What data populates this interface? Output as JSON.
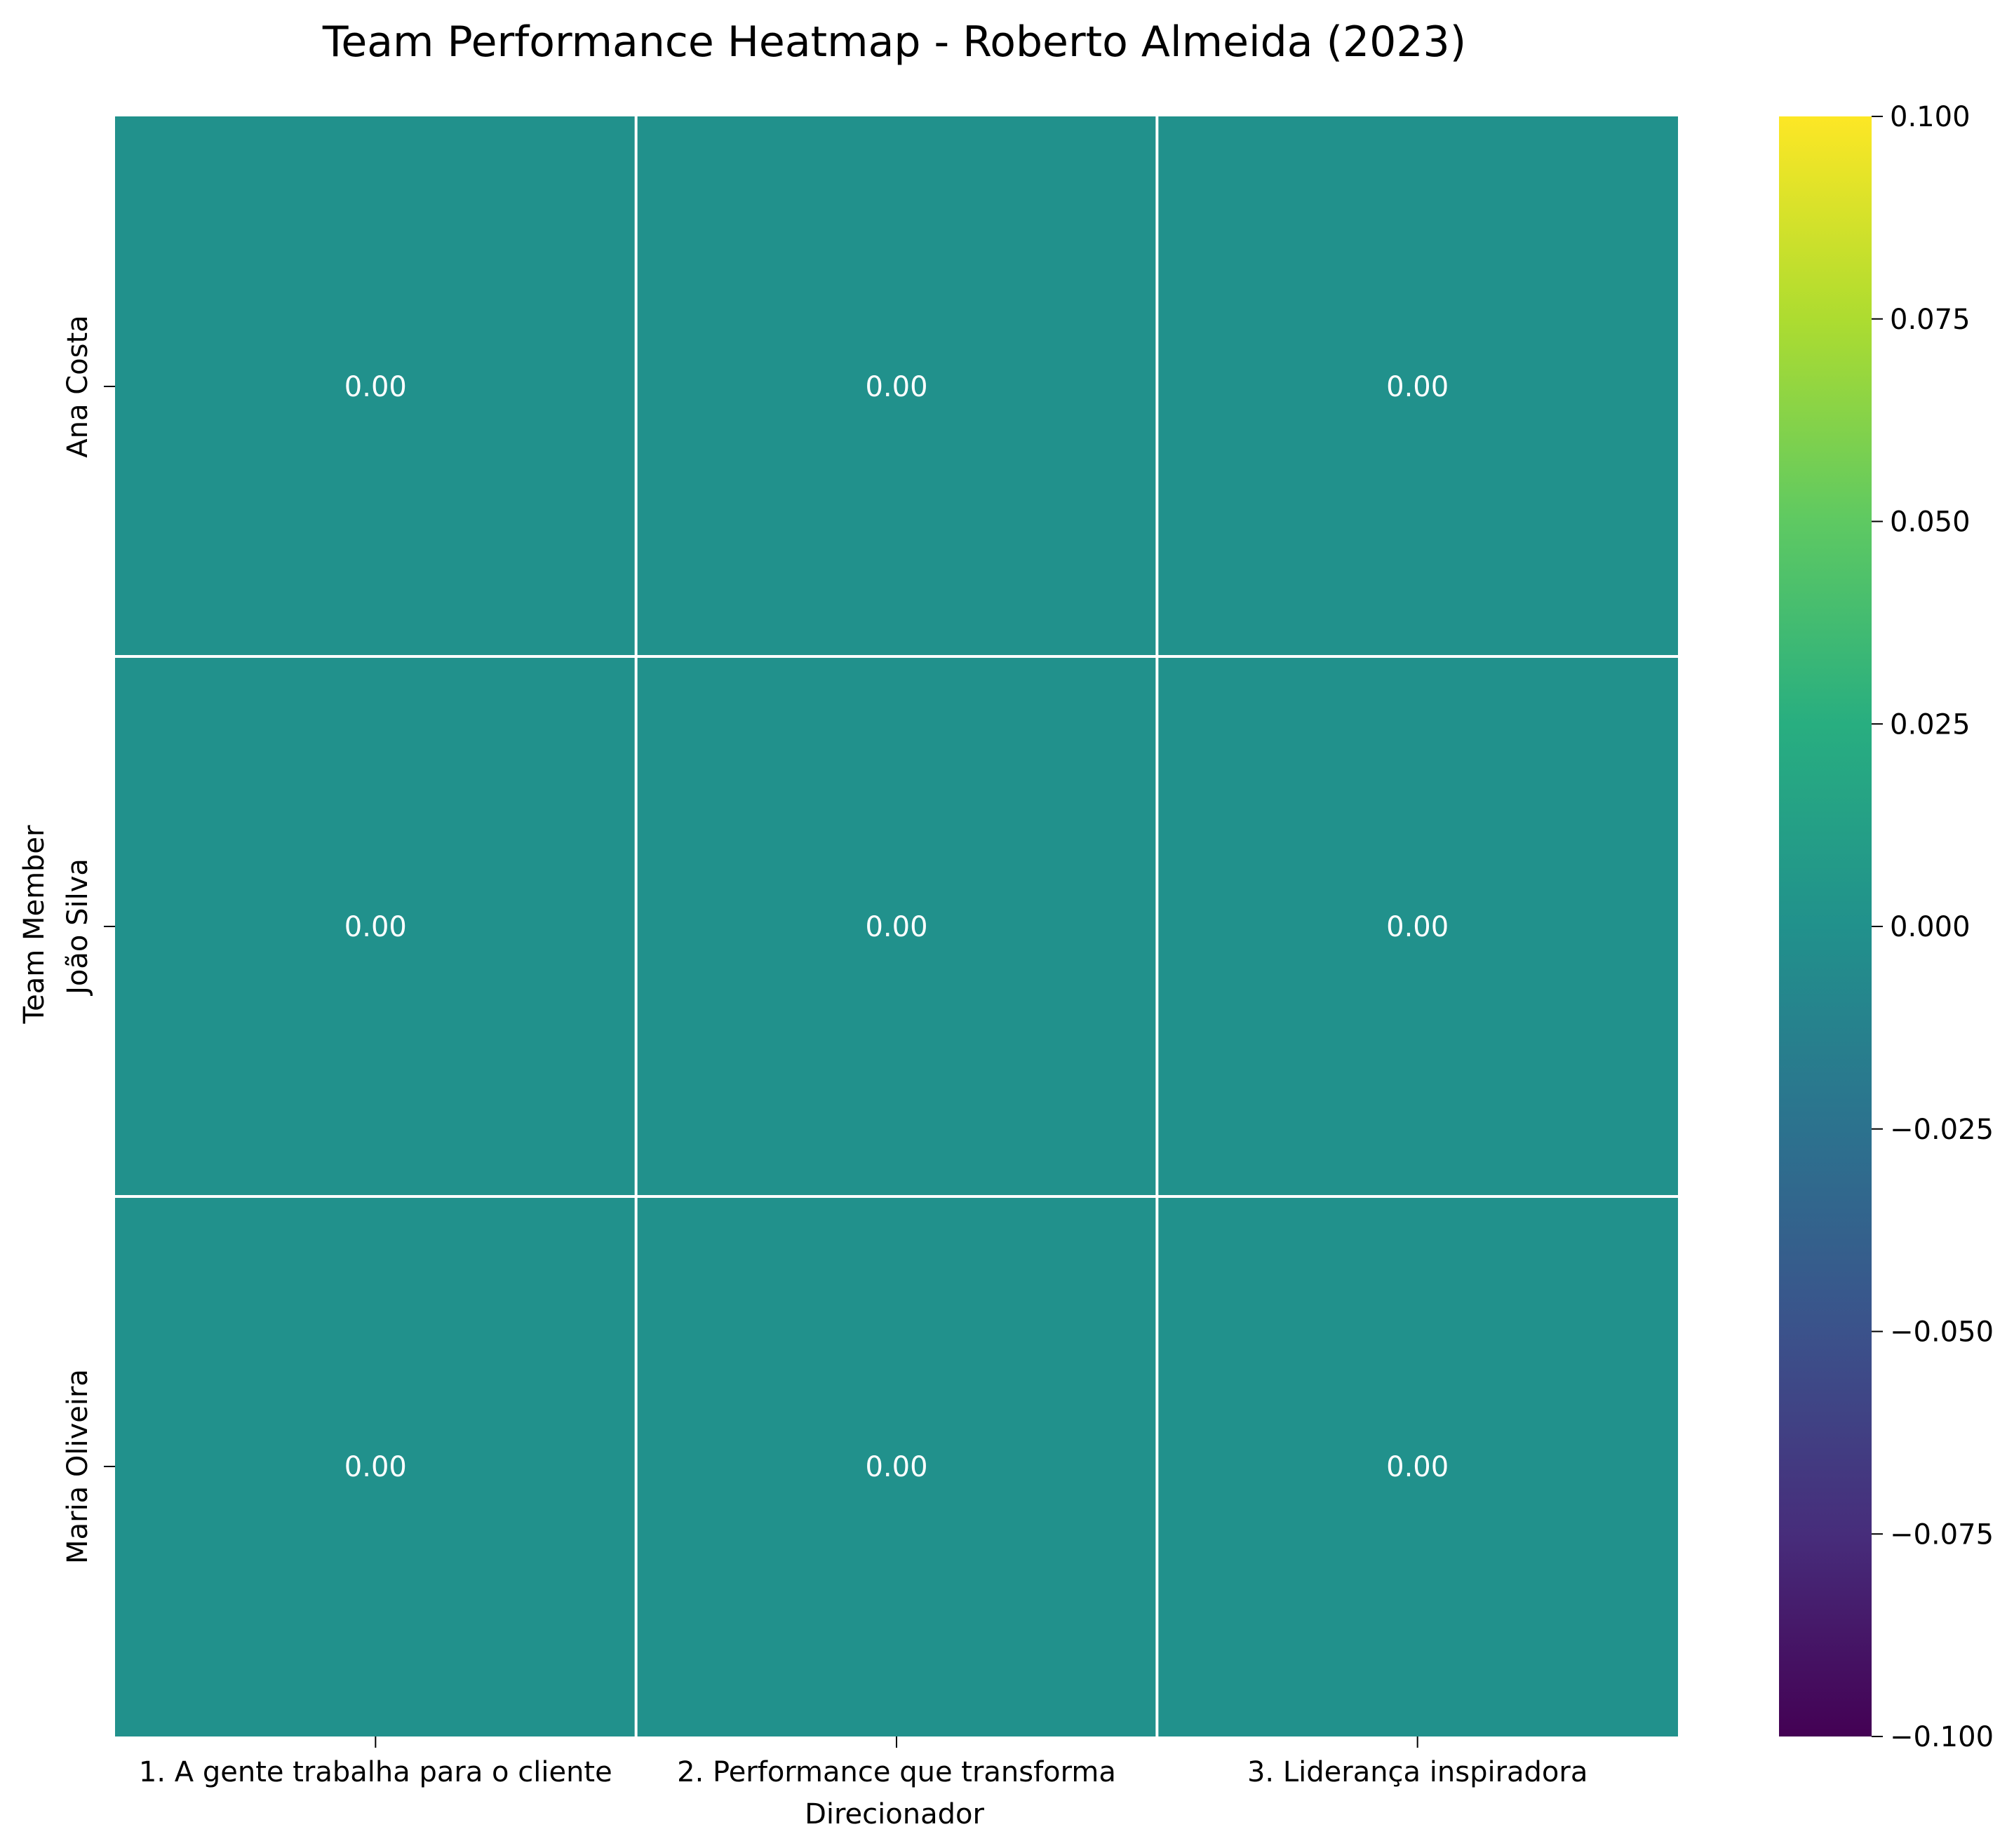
{
  "chart_data": {
    "type": "heatmap",
    "title": "Team Performance Heatmap - Roberto Almeida (2023)",
    "xlabel": "Direcionador",
    "ylabel": "Team Member",
    "x_categories": [
      "1. A gente trabalha para o cliente",
      "2. Performance que transforma",
      "3. Liderança inspiradora"
    ],
    "y_categories": [
      "Ana Costa",
      "João Silva",
      "Maria Oliveira"
    ],
    "values": [
      [
        0.0,
        0.0,
        0.0
      ],
      [
        0.0,
        0.0,
        0.0
      ],
      [
        0.0,
        0.0,
        0.0
      ]
    ],
    "cell_labels": [
      [
        "0.00",
        "0.00",
        "0.00"
      ],
      [
        "0.00",
        "0.00",
        "0.00"
      ],
      [
        "0.00",
        "0.00",
        "0.00"
      ]
    ],
    "colormap": "viridis",
    "cell_color": "#21918c",
    "grid_line_color": "#ffffff",
    "colorbar": {
      "range": [
        -0.1,
        0.1
      ],
      "ticks": [
        0.1,
        0.075,
        0.05,
        0.025,
        0.0,
        -0.025,
        -0.05,
        -0.075,
        -0.1
      ],
      "tick_labels": [
        "0.100",
        "0.075",
        "0.050",
        "0.025",
        "0.000",
        "−0.025",
        "−0.050",
        "−0.075",
        "−0.100"
      ]
    }
  }
}
